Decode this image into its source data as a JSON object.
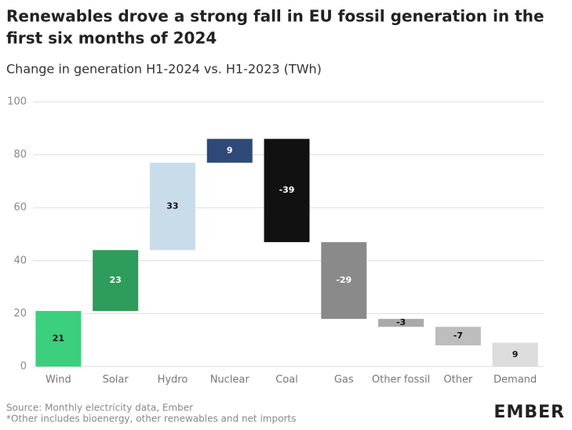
{
  "chart_data": {
    "type": "waterfall",
    "title": "Renewables drove a strong fall in EU fossil generation in the",
    "title_line2": "first six months of 2024",
    "subtitle": "Change in generation H1-2024 vs. H1-2023 (TWh)",
    "categories": [
      "Wind",
      "Solar",
      "Hydro",
      "Nuclear",
      "Coal",
      "Gas",
      "Other fossil",
      "Other",
      "Demand"
    ],
    "values": [
      21,
      23,
      33,
      9,
      -39,
      -29,
      -3,
      -7,
      9
    ],
    "colors": [
      "#3ccf7d",
      "#2e9c5a",
      "#c9dcea",
      "#2f4a78",
      "#111111",
      "#8a8a8a",
      "#a9a9a9",
      "#bdbdbd",
      "#dcdcdc"
    ],
    "last_is_total": true,
    "ylim": [
      0,
      100
    ],
    "yticks": [
      0,
      20,
      40,
      60,
      80,
      100
    ],
    "grid": true,
    "source": "Source: Monthly electricity data, Ember",
    "note": "*Other includes bioenergy, other renewables and net imports",
    "logo": "EMBER"
  }
}
